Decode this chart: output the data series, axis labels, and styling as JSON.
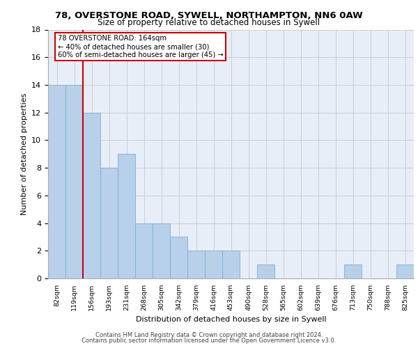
{
  "title": "78, OVERSTONE ROAD, SYWELL, NORTHAMPTON, NN6 0AW",
  "subtitle": "Size of property relative to detached houses in Sywell",
  "xlabel": "Distribution of detached houses by size in Sywell",
  "ylabel": "Number of detached properties",
  "bar_labels": [
    "82sqm",
    "119sqm",
    "156sqm",
    "193sqm",
    "231sqm",
    "268sqm",
    "305sqm",
    "342sqm",
    "379sqm",
    "416sqm",
    "453sqm",
    "490sqm",
    "528sqm",
    "565sqm",
    "602sqm",
    "639sqm",
    "676sqm",
    "713sqm",
    "750sqm",
    "788sqm",
    "825sqm"
  ],
  "bar_values": [
    14,
    14,
    12,
    8,
    9,
    4,
    4,
    3,
    2,
    2,
    2,
    0,
    1,
    0,
    0,
    0,
    0,
    1,
    0,
    0,
    1
  ],
  "bar_color": "#b8d0ea",
  "bar_edge_color": "#7aafd4",
  "property_line_x": 1.5,
  "annotation_line1": "78 OVERSTONE ROAD: 164sqm",
  "annotation_line2": "← 40% of detached houses are smaller (30)",
  "annotation_line3": "60% of semi-detached houses are larger (45) →",
  "annotation_box_color": "#ffffff",
  "annotation_border_color": "#cc0000",
  "vline_color": "#cc0000",
  "grid_color": "#cccccc",
  "background_color": "#e8eef8",
  "footer1": "Contains HM Land Registry data © Crown copyright and database right 2024.",
  "footer2": "Contains public sector information licensed under the Open Government Licence v3.0.",
  "ylim": [
    0,
    18
  ],
  "yticks": [
    0,
    2,
    4,
    6,
    8,
    10,
    12,
    14,
    16,
    18
  ]
}
